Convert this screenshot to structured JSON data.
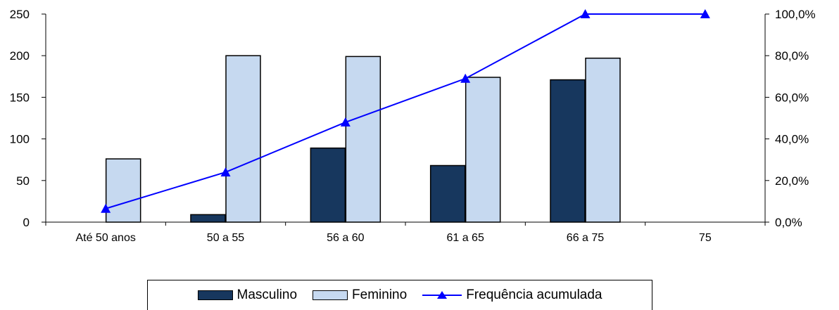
{
  "chart_data": {
    "type": "bar",
    "categories": [
      "Até 50 anos",
      "50 a 55",
      "56 a 60",
      "61 a 65",
      "66 a 75",
      "75"
    ],
    "series": [
      {
        "name": "Masculino",
        "type": "bar",
        "axis": "left",
        "values": [
          0,
          9,
          89,
          68,
          171,
          0
        ],
        "color": "#17375e"
      },
      {
        "name": "Feminino",
        "type": "bar",
        "axis": "left",
        "values": [
          76,
          200,
          199,
          174,
          197,
          0
        ],
        "color": "#c6d9f0"
      },
      {
        "name": "Frequência acumulada",
        "type": "line",
        "axis": "right",
        "marker": "triangle",
        "values": [
          6.5,
          24,
          48,
          69,
          100,
          100
        ],
        "color": "#0000ff"
      }
    ],
    "y_left": {
      "min": 0,
      "max": 250,
      "ticks": [
        "0",
        "50",
        "100",
        "150",
        "200",
        "250"
      ]
    },
    "y_right": {
      "min": 0,
      "max": 100,
      "ticks": [
        "0,0%",
        "20,0%",
        "40,0%",
        "60,0%",
        "80,0%",
        "100,0%"
      ]
    },
    "grid": false,
    "legend_position": "bottom"
  },
  "legend": {
    "masculino": "Masculino",
    "feminino": "Feminino",
    "frequencia": "Frequência acumulada"
  }
}
